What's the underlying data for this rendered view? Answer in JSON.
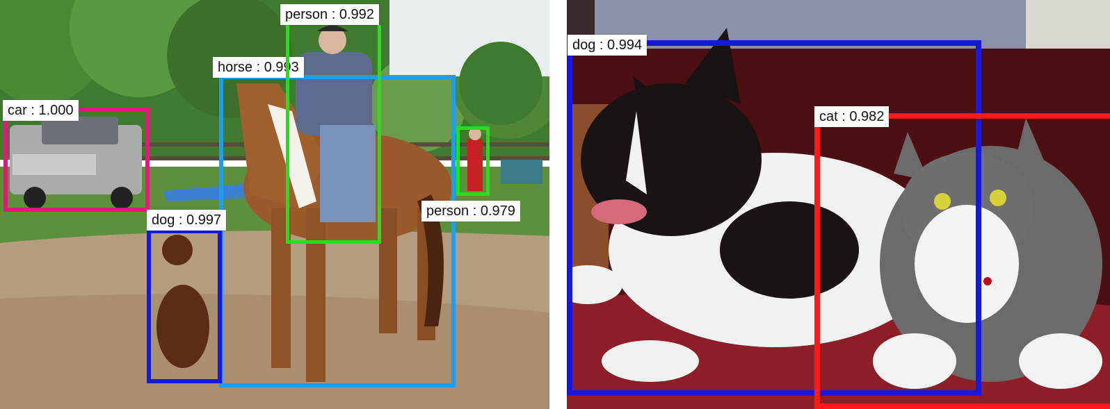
{
  "images": [
    {
      "scene": "outdoor paddock with horse, rider, dog, truck and person",
      "detections": [
        {
          "label": "car : 1.000",
          "class": "car",
          "score": "1.000",
          "color": "#e8177d"
        },
        {
          "label": "person : 0.992",
          "class": "person",
          "score": "0.992",
          "color": "#22e01a"
        },
        {
          "label": "horse : 0.993",
          "class": "horse",
          "score": "0.993",
          "color": "#1e9ef0"
        },
        {
          "label": "person : 0.979",
          "class": "person",
          "score": "0.979",
          "color": "#22e01a"
        },
        {
          "label": "dog : 0.997",
          "class": "dog",
          "score": "0.997",
          "color": "#1418e0"
        }
      ]
    },
    {
      "scene": "dog and cat lying on a red couch",
      "detections": [
        {
          "label": "dog : 0.994",
          "class": "dog",
          "score": "0.994",
          "color": "#1418e0"
        },
        {
          "label": "cat : 0.982",
          "class": "cat",
          "score": "0.982",
          "color": "#ff1a1a"
        }
      ]
    }
  ]
}
